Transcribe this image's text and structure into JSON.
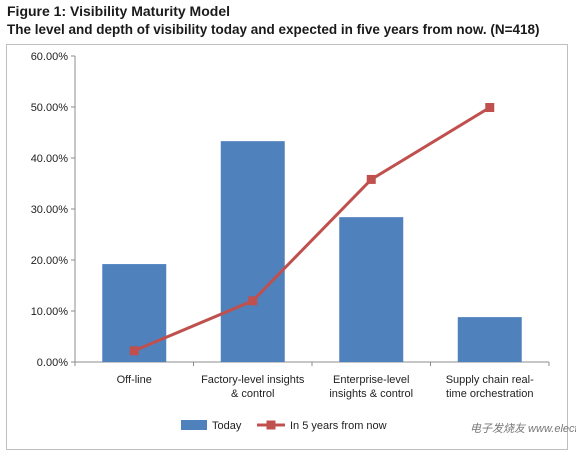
{
  "figure": {
    "title": "Figure 1: Visibility Maturity Model",
    "subtitle": "The level and depth of visibility today and expected in five years from now. (N=418)"
  },
  "chart_data": {
    "type": "bar",
    "categories": [
      [
        "Off-line"
      ],
      [
        "Factory-level insights",
        "& control"
      ],
      [
        "Enterprise-level",
        "insights & control"
      ],
      [
        "Supply chain real-",
        "time orchestration"
      ]
    ],
    "series": [
      {
        "name": "Today",
        "type": "bar",
        "color": "#4f81bd",
        "values": [
          19.2,
          43.3,
          28.4,
          8.8
        ]
      },
      {
        "name": "In 5 years from now",
        "type": "line",
        "color": "#c0504d",
        "values": [
          2.2,
          12.0,
          35.8,
          49.9
        ]
      }
    ],
    "ylim": [
      0,
      60
    ],
    "yticks": [
      "0.00%",
      "10.00%",
      "20.00%",
      "30.00%",
      "40.00%",
      "50.00%",
      "60.00%"
    ],
    "grid": false,
    "legend_position": "bottom"
  },
  "watermark": "电子发烧友 www.elecfans.com"
}
